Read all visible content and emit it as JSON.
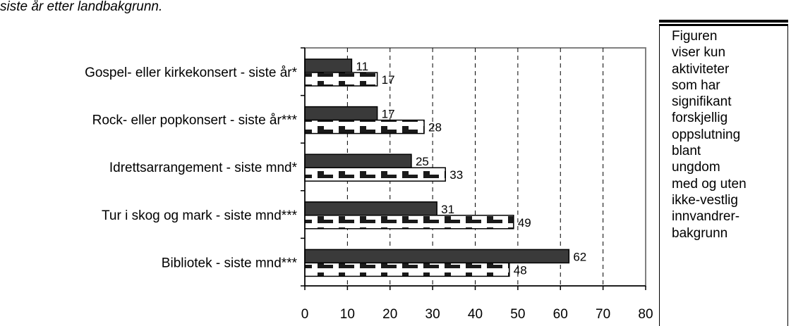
{
  "caption": "siste år etter landbakgrunn.",
  "note": {
    "text": "Figuren\nviser kun\naktiviteter\nsom har\nsignifikant\nforskjellig\noppslutning\nblant\nungdom\nmed og uten\nikke-vestlig\ninnvandrer-\nbakgrunn"
  },
  "chart_data": {
    "type": "bar",
    "orientation": "horizontal",
    "categories": [
      "Gospel- eller kirkekonsert - siste år*",
      "Rock- eller popkonsert - siste år***",
      "Idrettsarrangement - siste mnd*",
      "Tur i skog og mark - siste mnd***",
      "Bibliotek - siste mnd***"
    ],
    "series": [
      {
        "values": [
          11,
          17,
          25,
          31,
          62
        ],
        "fill": "#3a3a3a"
      },
      {
        "values": [
          17,
          28,
          33,
          49,
          48
        ],
        "fill": "hatched"
      }
    ],
    "xlim": [
      0,
      80
    ],
    "xticks": [
      0,
      10,
      20,
      30,
      40,
      50,
      60,
      70,
      80
    ],
    "grid": "vertical-dashed"
  }
}
